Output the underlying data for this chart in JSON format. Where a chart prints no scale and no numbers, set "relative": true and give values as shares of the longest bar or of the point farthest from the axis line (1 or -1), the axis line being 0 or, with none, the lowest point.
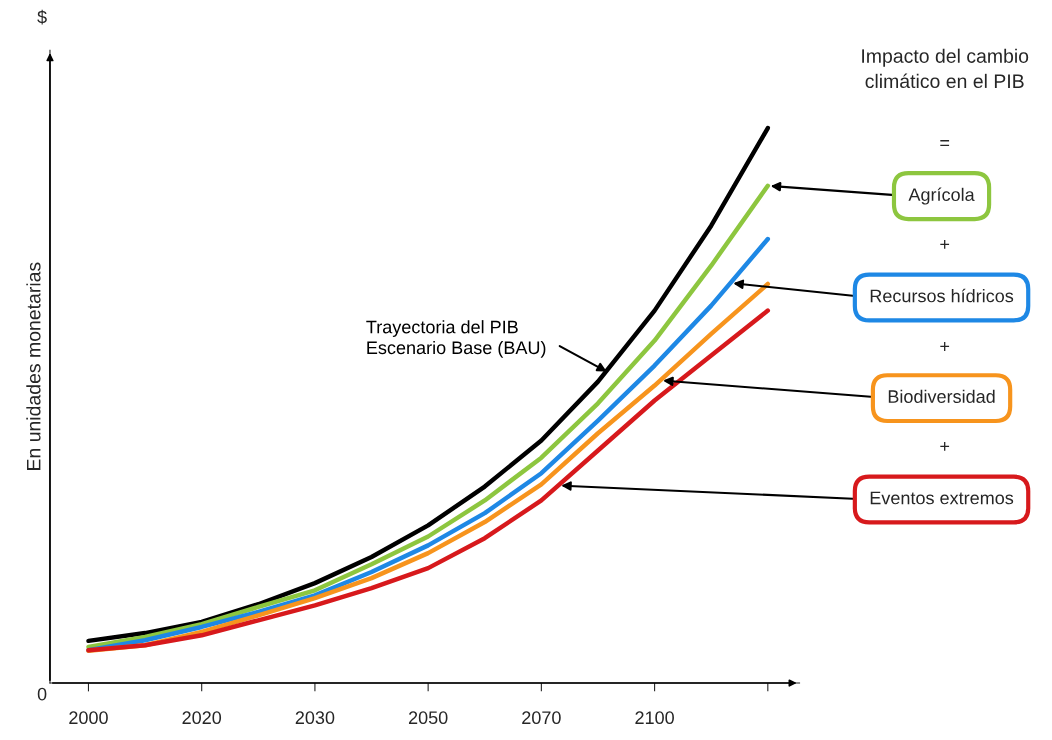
{
  "chart_data": {
    "type": "line",
    "relative": true,
    "ylabel": "En unidades monetarias",
    "categories": [
      "2000",
      null,
      "2020",
      null,
      "2030",
      null,
      "2050",
      null,
      "2070",
      null,
      "2100",
      null,
      null
    ],
    "series": [
      {
        "name": "Trayectoria del PIB\nEscenario Base (BAU)",
        "color": "#000000",
        "values": [
          0.076,
          0.09,
          0.11,
          0.142,
          0.18,
          0.227,
          0.284,
          0.354,
          0.437,
          0.543,
          0.671,
          0.824,
          1.0
        ]
      },
      {
        "name": "Agrícola",
        "color": "#8dc63f",
        "values": [
          0.065,
          0.083,
          0.106,
          0.137,
          0.167,
          0.214,
          0.264,
          0.329,
          0.406,
          0.504,
          0.617,
          0.752,
          0.896
        ]
      },
      {
        "name": "Recursos hídricos",
        "color": "#1e88e5",
        "values": [
          0.059,
          0.077,
          0.101,
          0.128,
          0.158,
          0.2,
          0.248,
          0.306,
          0.378,
          0.473,
          0.572,
          0.68,
          0.8
        ]
      },
      {
        "name": "Biodiversidad",
        "color": "#f7941d",
        "values": [
          0.058,
          0.068,
          0.092,
          0.122,
          0.153,
          0.189,
          0.234,
          0.29,
          0.358,
          0.45,
          0.536,
          0.629,
          0.719
        ]
      },
      {
        "name": "Eventos extremos",
        "color": "#d7191c",
        "values": [
          0.059,
          0.068,
          0.086,
          0.113,
          0.14,
          0.171,
          0.207,
          0.261,
          0.329,
          0.419,
          0.509,
          0.59,
          0.671
        ]
      }
    ],
    "annotations": [
      "Impacto del cambio\nclimático en el PIB",
      "=",
      "+",
      "+",
      "+",
      "$",
      "0"
    ],
    "line_style": "solid",
    "marker": "none",
    "grid": false
  }
}
